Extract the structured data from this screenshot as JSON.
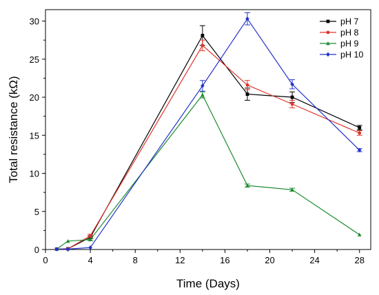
{
  "chart_data": {
    "type": "line",
    "xlabel": "Time (Days)",
    "ylabel": "Total resistance (kΩ)",
    "xlim": [
      0,
      29
    ],
    "ylim": [
      0,
      31.5
    ],
    "xticks": [
      0,
      4,
      8,
      12,
      16,
      20,
      24,
      28
    ],
    "yticks": [
      0,
      5,
      10,
      15,
      20,
      25,
      30
    ],
    "legend_position": "top-right",
    "series": [
      {
        "name": "pH 7",
        "color": "#000000",
        "marker": "square",
        "x": [
          1,
          2,
          4,
          14,
          18,
          22,
          28
        ],
        "y": [
          0.05,
          0.1,
          1.6,
          28.1,
          20.4,
          20.0,
          16.0
        ],
        "err": [
          0.05,
          0.05,
          0.2,
          1.3,
          0.8,
          0.7,
          0.3
        ]
      },
      {
        "name": "pH 8",
        "color": "#e0322a",
        "marker": "circle",
        "x": [
          1,
          2,
          4,
          14,
          18,
          22,
          28
        ],
        "y": [
          0.05,
          0.1,
          1.8,
          26.8,
          21.6,
          19.1,
          15.3
        ],
        "err": [
          0.05,
          0.05,
          0.2,
          0.7,
          0.6,
          0.5,
          0.3
        ]
      },
      {
        "name": "pH 9",
        "color": "#1a8a2e",
        "marker": "triangle",
        "x": [
          1,
          2,
          4,
          14,
          18,
          22,
          28
        ],
        "y": [
          0.05,
          1.1,
          1.3,
          20.3,
          8.4,
          7.85,
          1.95
        ],
        "err": [
          0.05,
          0.1,
          0.15,
          0.4,
          0.2,
          0.2,
          0.1
        ]
      },
      {
        "name": "pH 10",
        "color": "#2233cc",
        "marker": "diamond",
        "x": [
          1,
          2,
          4,
          14,
          18,
          22,
          28
        ],
        "y": [
          0.05,
          0.05,
          0.25,
          21.5,
          30.3,
          21.7,
          13.05
        ],
        "err": [
          0.05,
          0.05,
          0.05,
          0.7,
          0.8,
          0.6,
          0.2
        ]
      }
    ]
  }
}
